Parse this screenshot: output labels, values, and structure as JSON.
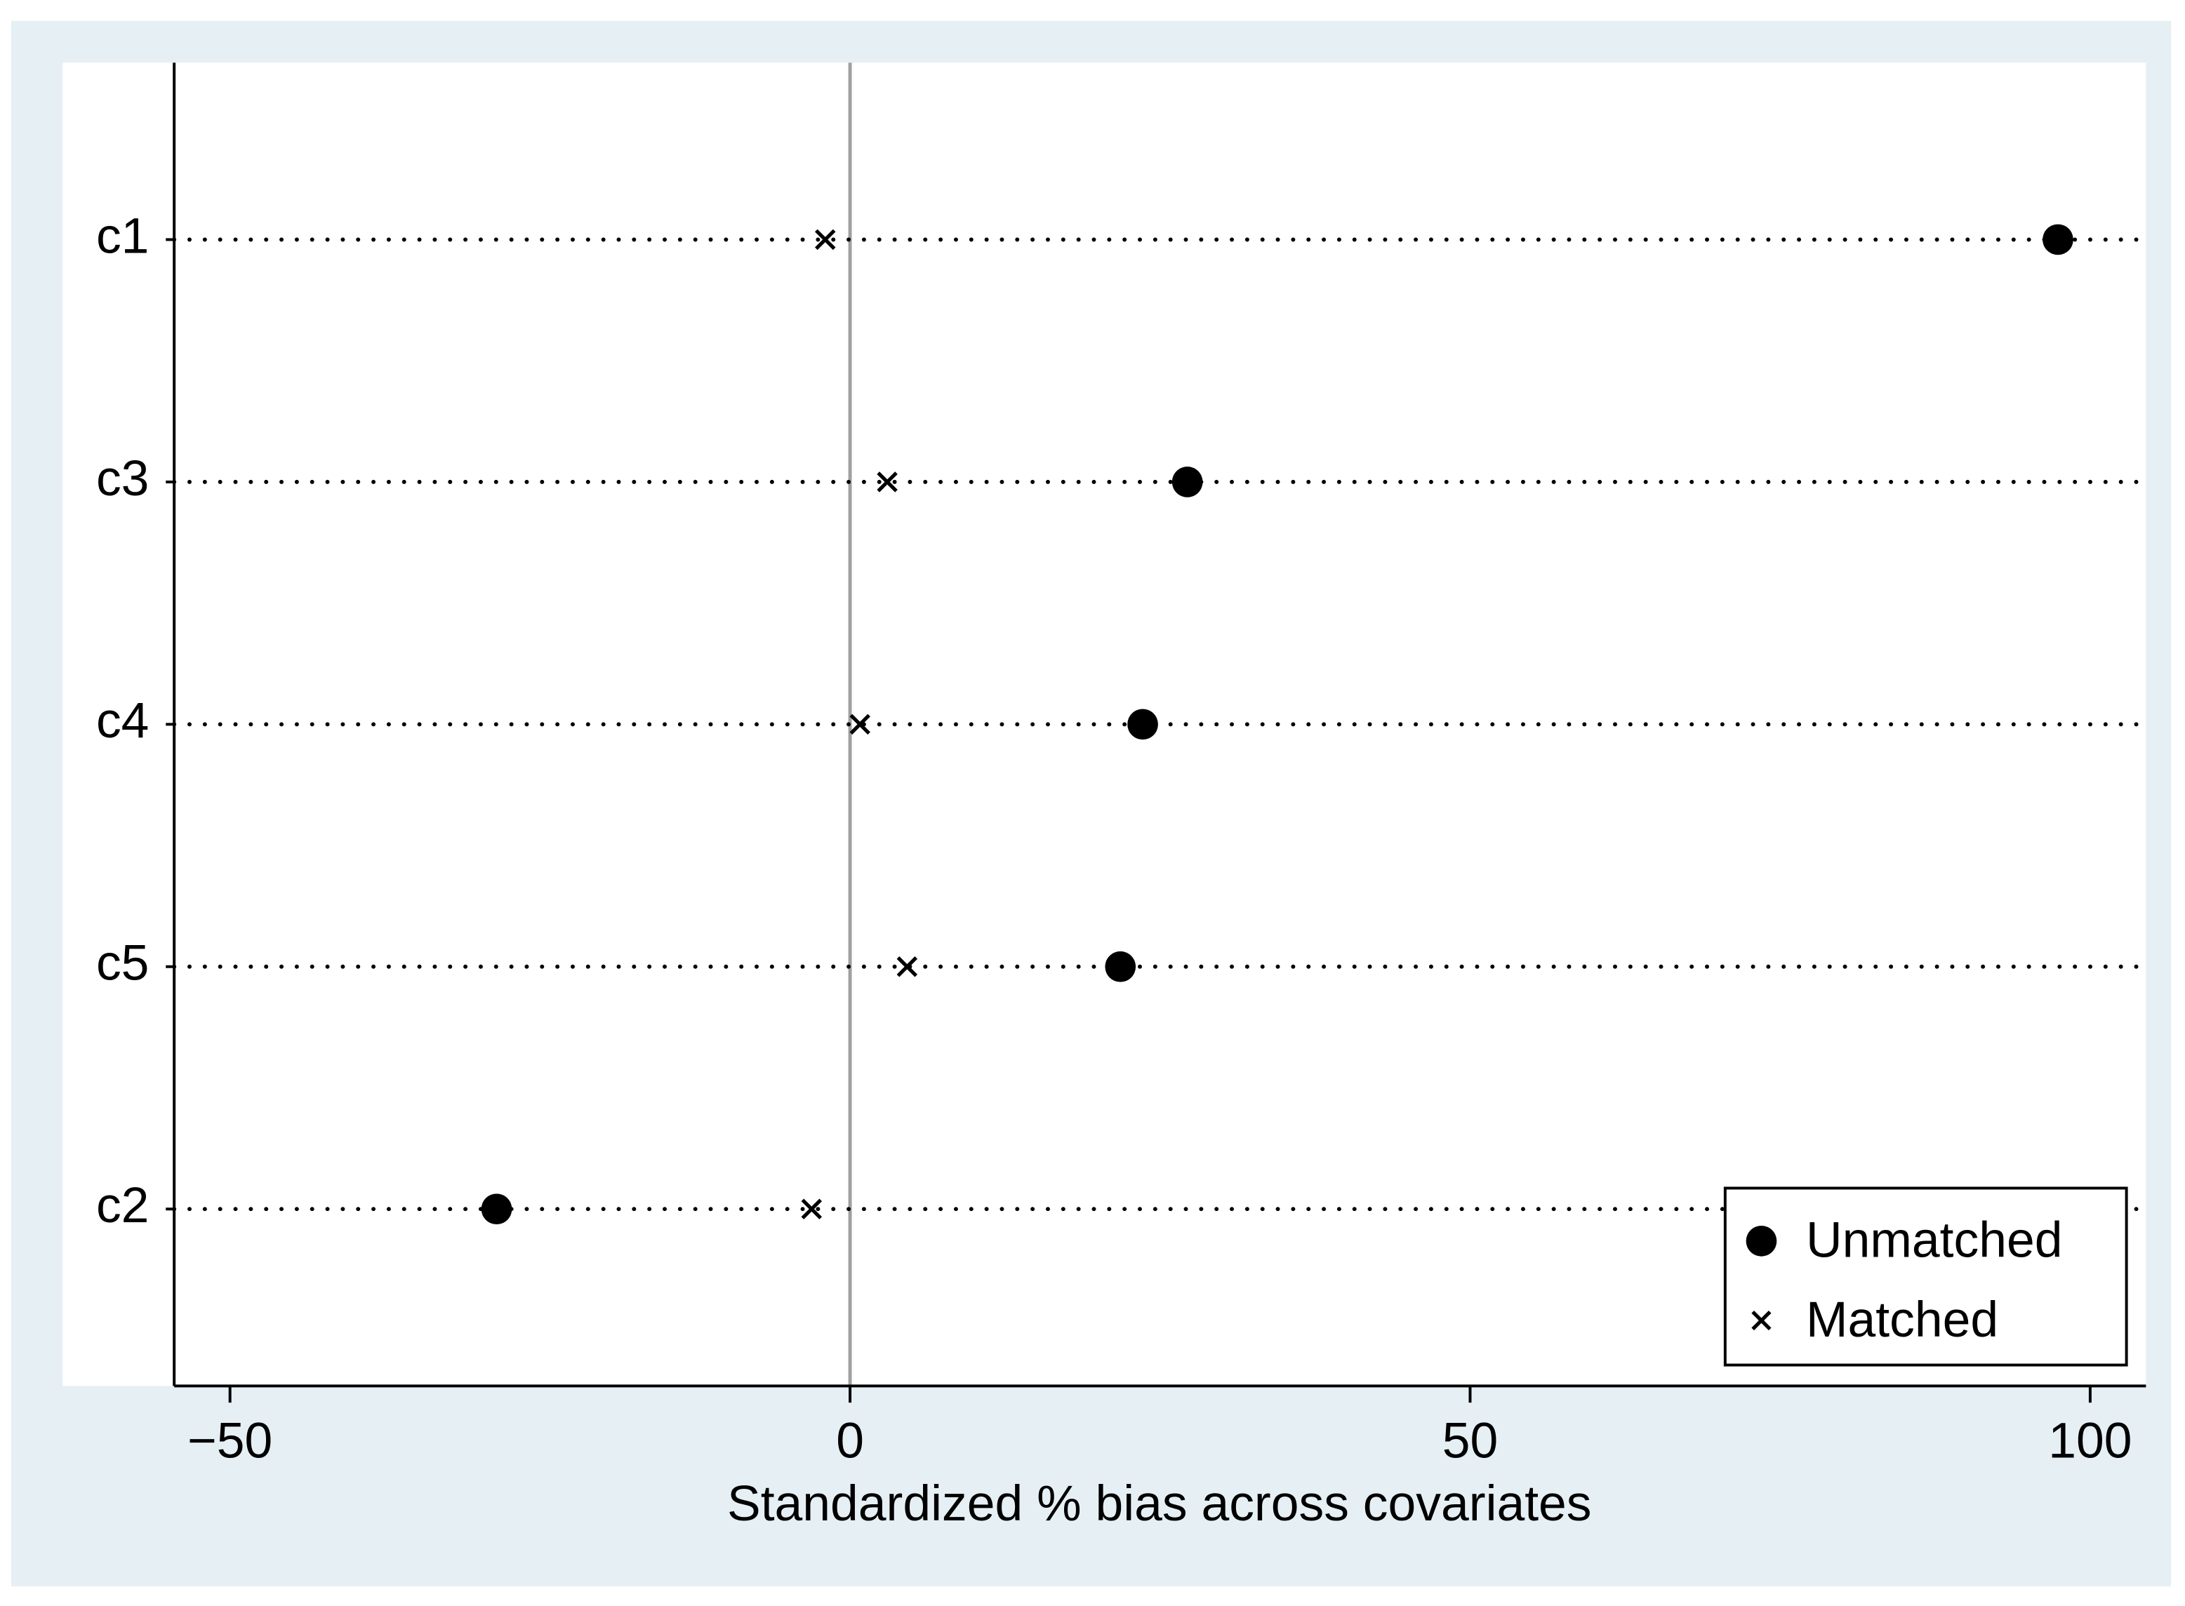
{
  "chart_data": {
    "type": "dot",
    "x_label": "Standardized % bias across covariates",
    "categories": [
      "c1",
      "c3",
      "c4",
      "c5",
      "c2"
    ],
    "series": [
      {
        "name": "Unmatched",
        "marker": "circle",
        "color": "#000000",
        "values": [
          97.4,
          27.2,
          23.6,
          21.8,
          -28.5
        ]
      },
      {
        "name": "Matched",
        "marker": "x",
        "color": "#000000",
        "values": [
          -2.0,
          3.0,
          0.8,
          4.6,
          -3.1
        ]
      }
    ],
    "xlim": [
      -54.5,
      104.5
    ],
    "xticks": [
      {
        "value": -50,
        "label": "−50"
      },
      0,
      50,
      100
    ],
    "xline": 0,
    "legend": "bottom-right"
  }
}
